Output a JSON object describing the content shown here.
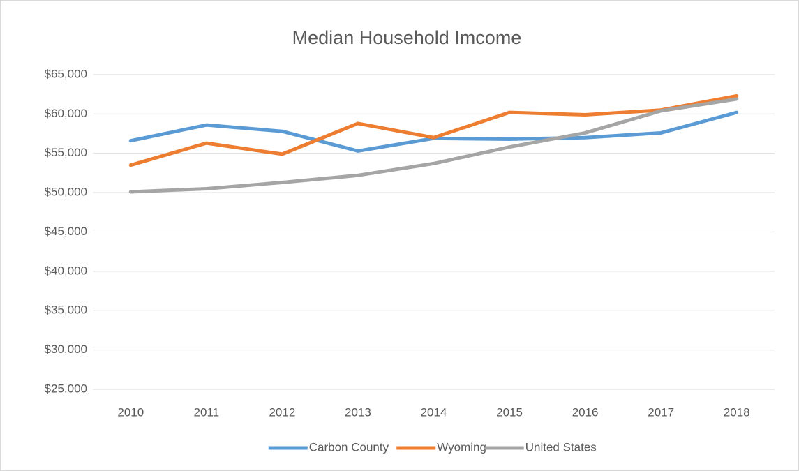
{
  "chart_data": {
    "type": "line",
    "title": "Median Household Imcome",
    "categories": [
      "2010",
      "2011",
      "2012",
      "2013",
      "2014",
      "2015",
      "2016",
      "2017",
      "2018"
    ],
    "series": [
      {
        "name": "Carbon County",
        "color": "#5b9bd5",
        "values": [
          56600,
          58600,
          57800,
          55300,
          56900,
          56800,
          57000,
          57600,
          60200
        ]
      },
      {
        "name": "Wyoming",
        "color": "#ed7d31",
        "values": [
          53500,
          56300,
          54900,
          58800,
          57000,
          60200,
          59900,
          60500,
          62300
        ]
      },
      {
        "name": "United States",
        "color": "#a5a5a5",
        "values": [
          50100,
          50500,
          51300,
          52200,
          53700,
          55800,
          57600,
          60400,
          61900
        ]
      }
    ],
    "ylim": [
      25000,
      65000
    ],
    "yticks": [
      {
        "value": 25000,
        "label": "$25,000"
      },
      {
        "value": 30000,
        "label": "$30,000"
      },
      {
        "value": 35000,
        "label": "$35,000"
      },
      {
        "value": 40000,
        "label": "$40,000"
      },
      {
        "value": 45000,
        "label": "$45,000"
      },
      {
        "value": 50000,
        "label": "$50,000"
      },
      {
        "value": 55000,
        "label": "$55,000"
      },
      {
        "value": 60000,
        "label": "$60,000"
      },
      {
        "value": 65000,
        "label": "$65,000"
      }
    ],
    "grid": true,
    "legend": "bottom"
  }
}
